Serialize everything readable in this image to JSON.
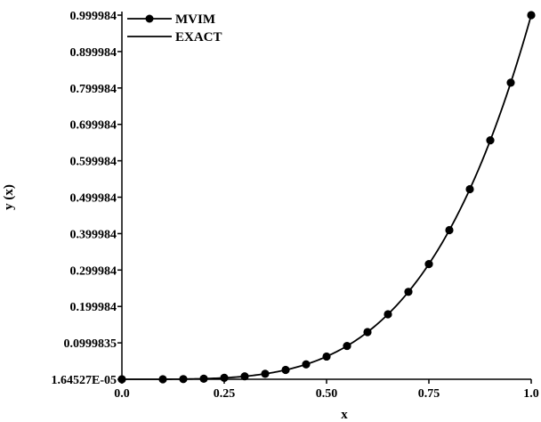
{
  "chart_data": {
    "type": "line",
    "xlabel": "x",
    "ylabel": "y (x)",
    "xlim": [
      0,
      1
    ],
    "ylim": [
      1.64527e-05,
      0.999984
    ],
    "x_ticks": [
      0,
      0.25,
      0.5,
      0.75,
      1
    ],
    "x_tick_labels": [
      "0.0",
      "0.25",
      "0.50",
      "0.75",
      "1.0"
    ],
    "y_ticks": [
      1.64527e-05,
      0.0999835,
      0.199984,
      0.299984,
      0.399984,
      0.499984,
      0.599984,
      0.699984,
      0.799984,
      0.899984,
      0.999984
    ],
    "y_tick_labels": [
      "1.64527E-05",
      "0.0999835",
      "0.199984",
      "0.299984",
      "0.399984",
      "0.499984",
      "0.599984",
      "0.699984",
      "0.799984",
      "0.899984",
      "0.999984"
    ],
    "grid": false,
    "legend_position": "top-left",
    "series": [
      {
        "name": "MVIM",
        "style": "line-with-markers",
        "color": "#000000",
        "x": [
          0,
          0.1,
          0.15,
          0.2,
          0.25,
          0.3,
          0.35,
          0.4,
          0.45,
          0.5,
          0.55,
          0.6,
          0.65,
          0.7,
          0.75,
          0.8,
          0.85,
          0.9,
          0.95,
          1.0
        ],
        "y": [
          1.64527e-05,
          0.0001,
          0.0005,
          0.0016,
          0.0039,
          0.0081,
          0.015,
          0.0256,
          0.041,
          0.0625,
          0.0915,
          0.1296,
          0.1785,
          0.2401,
          0.3164,
          0.4096,
          0.522,
          0.6561,
          0.8145,
          0.999984
        ]
      },
      {
        "name": "EXACT",
        "style": "line",
        "color": "#000000",
        "exponent": 4
      }
    ]
  }
}
